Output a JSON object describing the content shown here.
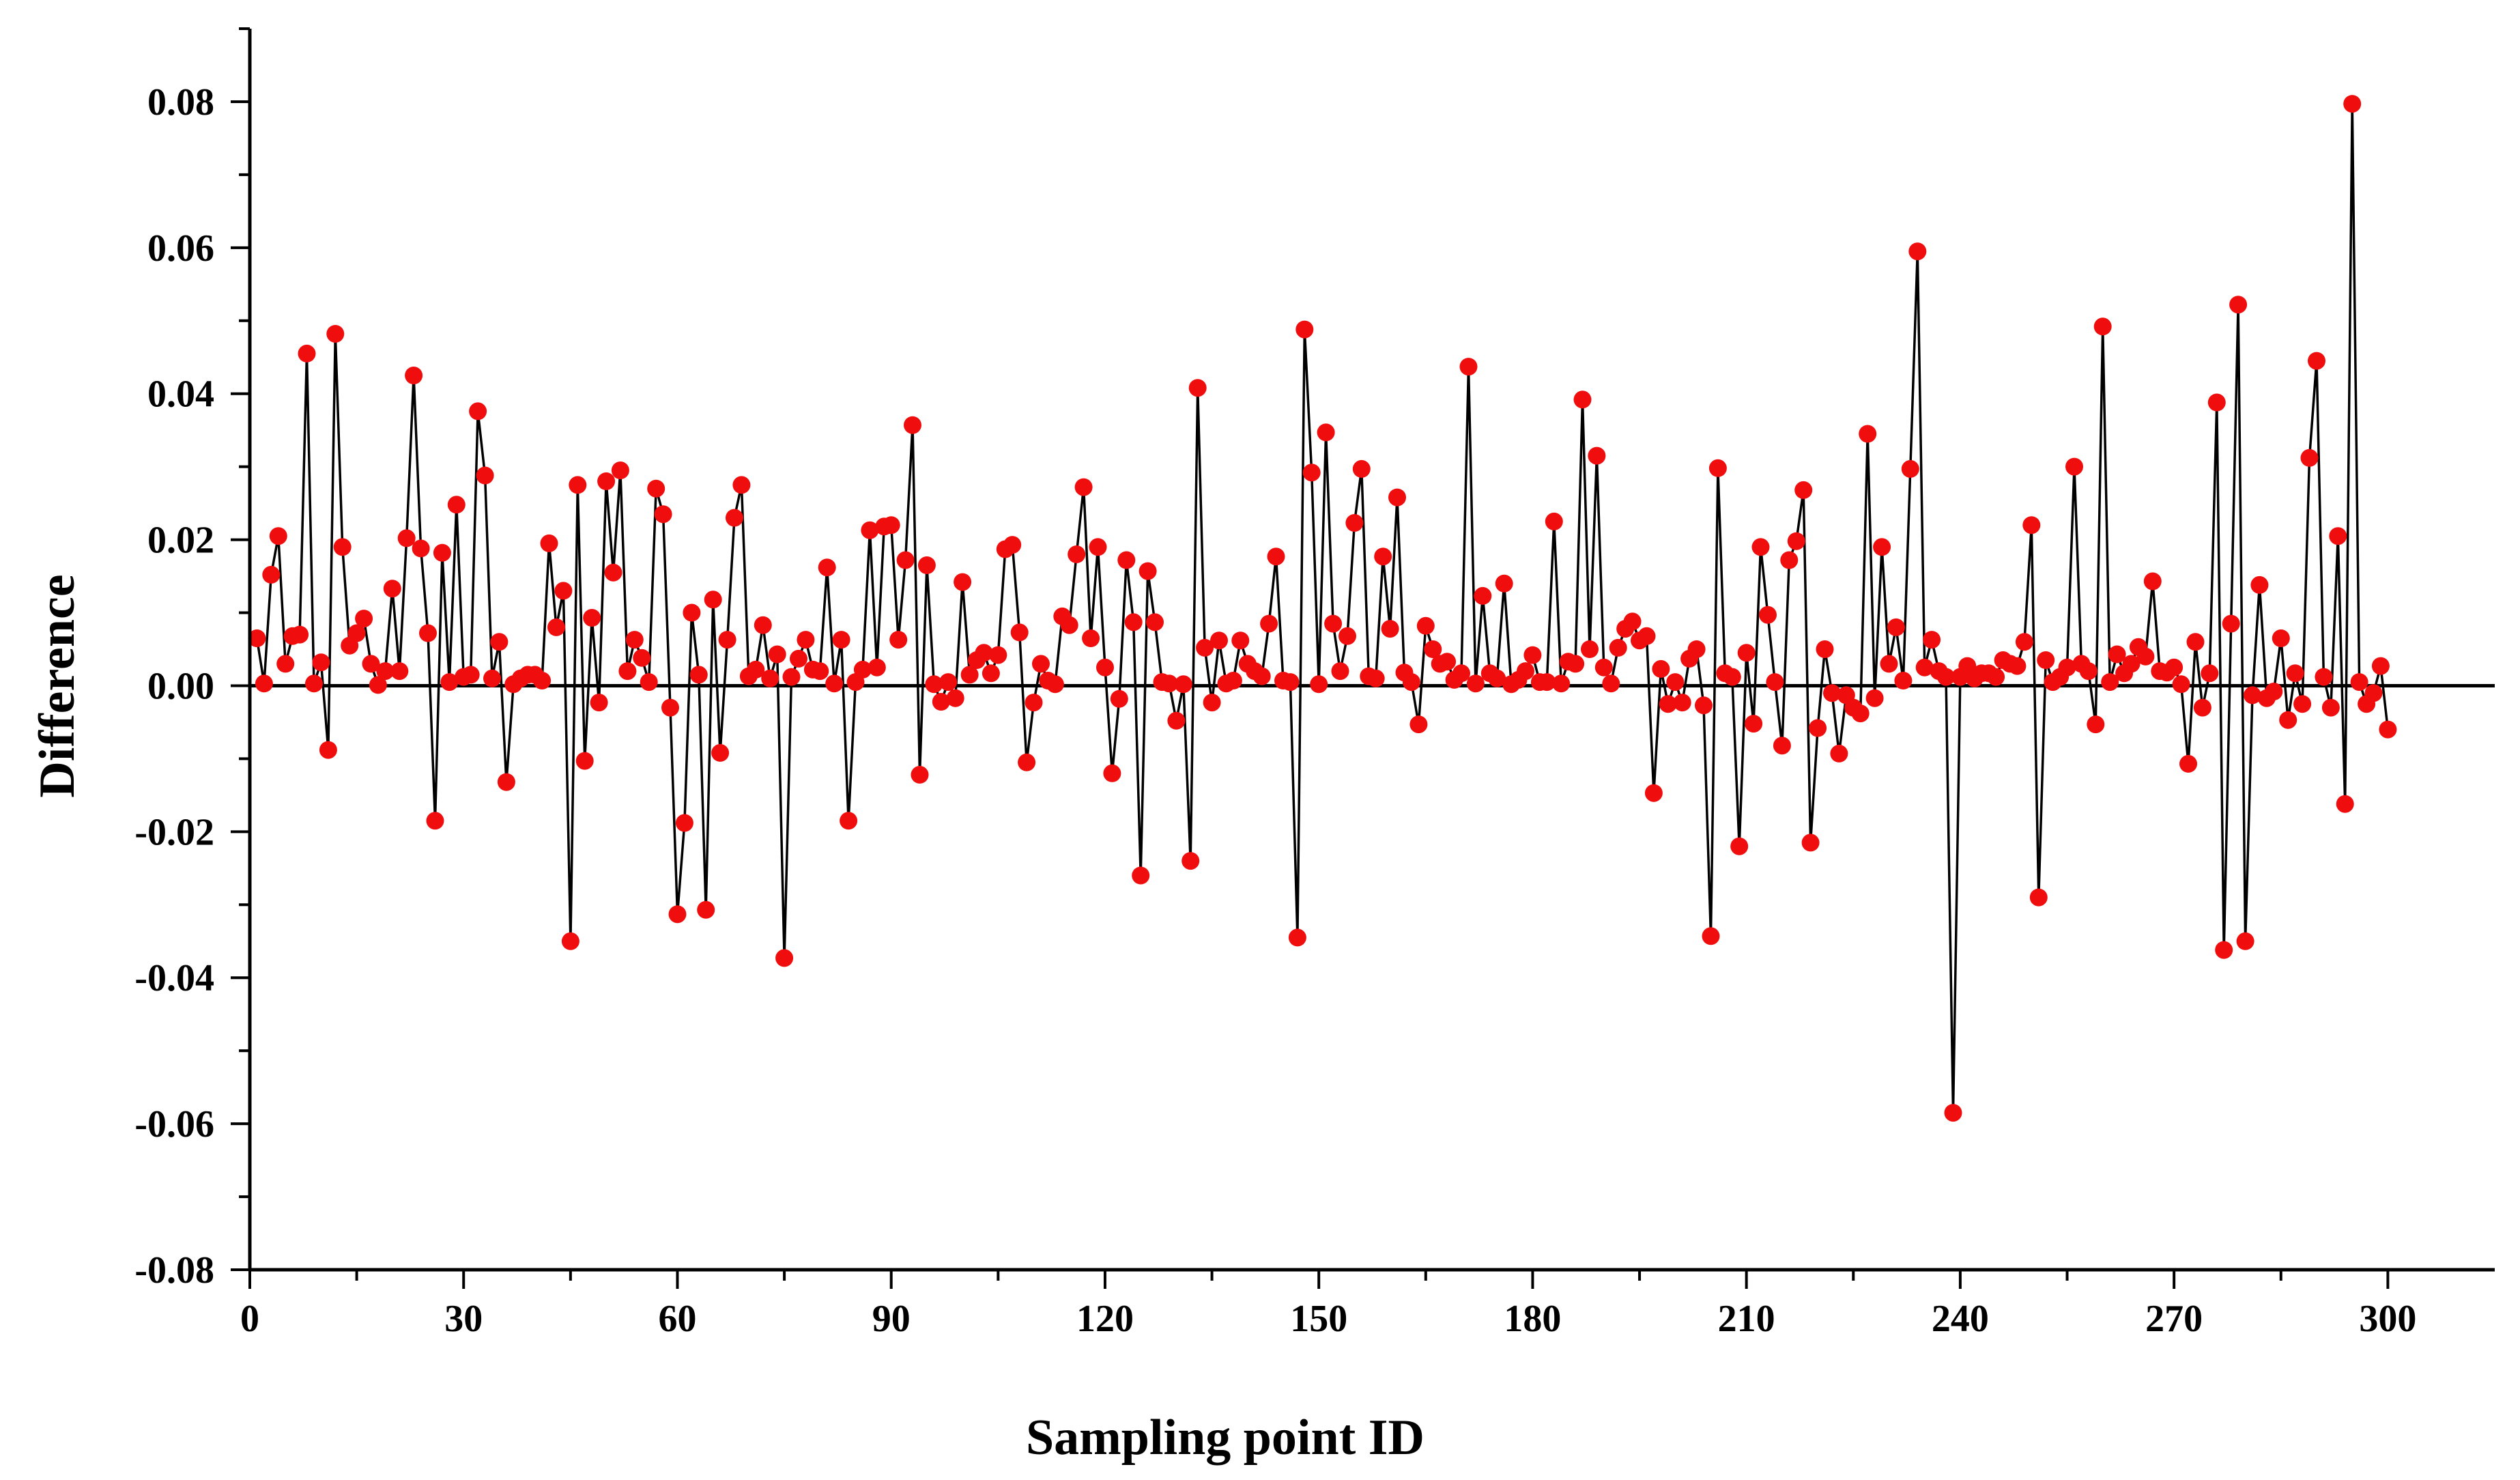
{
  "colors": {
    "marker": "#f00d0d",
    "line": "#000000",
    "axis": "#000000"
  },
  "chart_data": {
    "type": "line",
    "title": "",
    "xlabel": "Sampling point ID",
    "ylabel": "Difference",
    "xlim": [
      0,
      315
    ],
    "ylim": [
      -0.08,
      0.09
    ],
    "x_ticks": [
      0,
      30,
      60,
      90,
      120,
      150,
      180,
      210,
      240,
      270,
      300
    ],
    "x_tick_labels": [
      "0",
      "30",
      "60",
      "90",
      "120",
      "150",
      "180",
      "210",
      "240",
      "270",
      "300"
    ],
    "y_ticks": [
      -0.08,
      -0.06,
      -0.04,
      -0.02,
      0.0,
      0.02,
      0.04,
      0.06,
      0.08
    ],
    "y_tick_labels": [
      "-0.08",
      "-0.06",
      "-0.04",
      "-0.02",
      "0.00",
      "0.02",
      "0.04",
      "0.06",
      "0.08"
    ],
    "reference_line": {
      "y": 0
    },
    "series": [
      {
        "name": "Difference",
        "marker": "circle",
        "x_start": 1,
        "values": [
          0.0065,
          0.0003,
          0.0152,
          0.0205,
          0.003,
          0.0068,
          0.007,
          0.0455,
          0.0003,
          0.0032,
          -0.0088,
          0.0482,
          0.019,
          0.0055,
          0.0072,
          0.0092,
          0.003,
          0.0001,
          0.002,
          0.0133,
          0.002,
          0.0202,
          0.0425,
          0.0188,
          0.0072,
          -0.0185,
          0.0182,
          0.0005,
          0.0248,
          0.0012,
          0.0015,
          0.0376,
          0.0288,
          0.001,
          0.006,
          -0.0132,
          0.0002,
          0.001,
          0.0015,
          0.0015,
          0.0007,
          0.0195,
          0.008,
          0.013,
          -0.035,
          0.0275,
          -0.0103,
          0.0093,
          -0.0023,
          0.028,
          0.0155,
          0.0295,
          0.002,
          0.0063,
          0.0038,
          0.0005,
          0.027,
          0.0235,
          -0.003,
          -0.0313,
          -0.0188,
          0.01,
          0.0015,
          -0.0307,
          0.0118,
          -0.0092,
          0.0063,
          0.023,
          0.0275,
          0.0013,
          0.0022,
          0.0083,
          0.001,
          0.0043,
          -0.0373,
          0.0012,
          0.0037,
          0.0063,
          0.0022,
          0.002,
          0.0162,
          0.0003,
          0.0063,
          -0.0185,
          0.0005,
          0.0022,
          0.0213,
          0.0025,
          0.0218,
          0.022,
          0.0063,
          0.0172,
          0.0357,
          -0.0122,
          0.0165,
          0.0002,
          -0.0022,
          0.0005,
          -0.0017,
          0.0142,
          0.0015,
          0.0035,
          0.0045,
          0.0017,
          0.0042,
          0.0187,
          0.0193,
          0.0073,
          -0.0105,
          -0.0023,
          0.003,
          0.0007,
          0.0002,
          0.0095,
          0.0083,
          0.018,
          0.0272,
          0.0065,
          0.019,
          0.0025,
          -0.012,
          -0.0018,
          0.0172,
          0.0087,
          -0.026,
          0.0157,
          0.0087,
          0.0005,
          0.0003,
          -0.0048,
          0.0002,
          -0.024,
          0.0408,
          0.0052,
          -0.0023,
          0.0062,
          0.0003,
          0.0007,
          0.0062,
          0.003,
          0.002,
          0.0013,
          0.0085,
          0.0177,
          0.0007,
          0.0005,
          -0.0345,
          0.0488,
          0.0292,
          0.0002,
          0.0347,
          0.0085,
          0.002,
          0.0068,
          0.0223,
          0.0297,
          0.0013,
          0.001,
          0.0177,
          0.0078,
          0.0258,
          0.0018,
          0.0005,
          -0.0053,
          0.0082,
          0.005,
          0.003,
          0.0033,
          0.0008,
          0.0017,
          0.0437,
          0.0003,
          0.0123,
          0.0017,
          0.001,
          0.014,
          0.0002,
          0.0008,
          0.002,
          0.0042,
          0.0005,
          0.0005,
          0.0225,
          0.0003,
          0.0033,
          0.003,
          0.0392,
          0.005,
          0.0315,
          0.0025,
          0.0003,
          0.0052,
          0.0078,
          0.0088,
          0.0062,
          0.0068,
          -0.0147,
          0.0023,
          -0.0025,
          0.0005,
          -0.0023,
          0.0037,
          0.005,
          -0.0027,
          -0.0343,
          0.0298,
          0.0017,
          0.0012,
          -0.022,
          0.0045,
          -0.0052,
          0.019,
          0.0097,
          0.0005,
          -0.0082,
          0.0172,
          0.0198,
          0.0268,
          -0.0215,
          -0.0058,
          0.005,
          -0.001,
          -0.0093,
          -0.0013,
          -0.003,
          -0.0038,
          0.0345,
          -0.0017,
          0.019,
          0.003,
          0.008,
          0.0007,
          0.0297,
          0.0595,
          0.0025,
          0.0063,
          0.002,
          0.0012,
          -0.0585,
          0.0012,
          0.0027,
          0.001,
          0.0017,
          0.0017,
          0.0012,
          0.0035,
          0.003,
          0.0027,
          0.006,
          0.022,
          -0.029,
          0.0035,
          0.0005,
          0.0012,
          0.0025,
          0.03,
          0.003,
          0.002,
          -0.0053,
          0.0492,
          0.0005,
          0.0043,
          0.0017,
          0.003,
          0.0053,
          0.004,
          0.0143,
          0.002,
          0.0018,
          0.0025,
          0.0002,
          -0.0107,
          0.006,
          -0.003,
          0.0017,
          0.0388,
          -0.0362,
          0.0085,
          0.0522,
          -0.035,
          -0.0013,
          0.0138,
          -0.0017,
          -0.0008,
          0.0065,
          -0.0047,
          0.0017,
          -0.0025,
          0.0312,
          0.0445,
          0.0012,
          -0.003,
          0.0205,
          -0.0162,
          0.0797,
          0.0005,
          -0.0025,
          -0.001,
          0.0027,
          -0.006
        ]
      }
    ]
  }
}
